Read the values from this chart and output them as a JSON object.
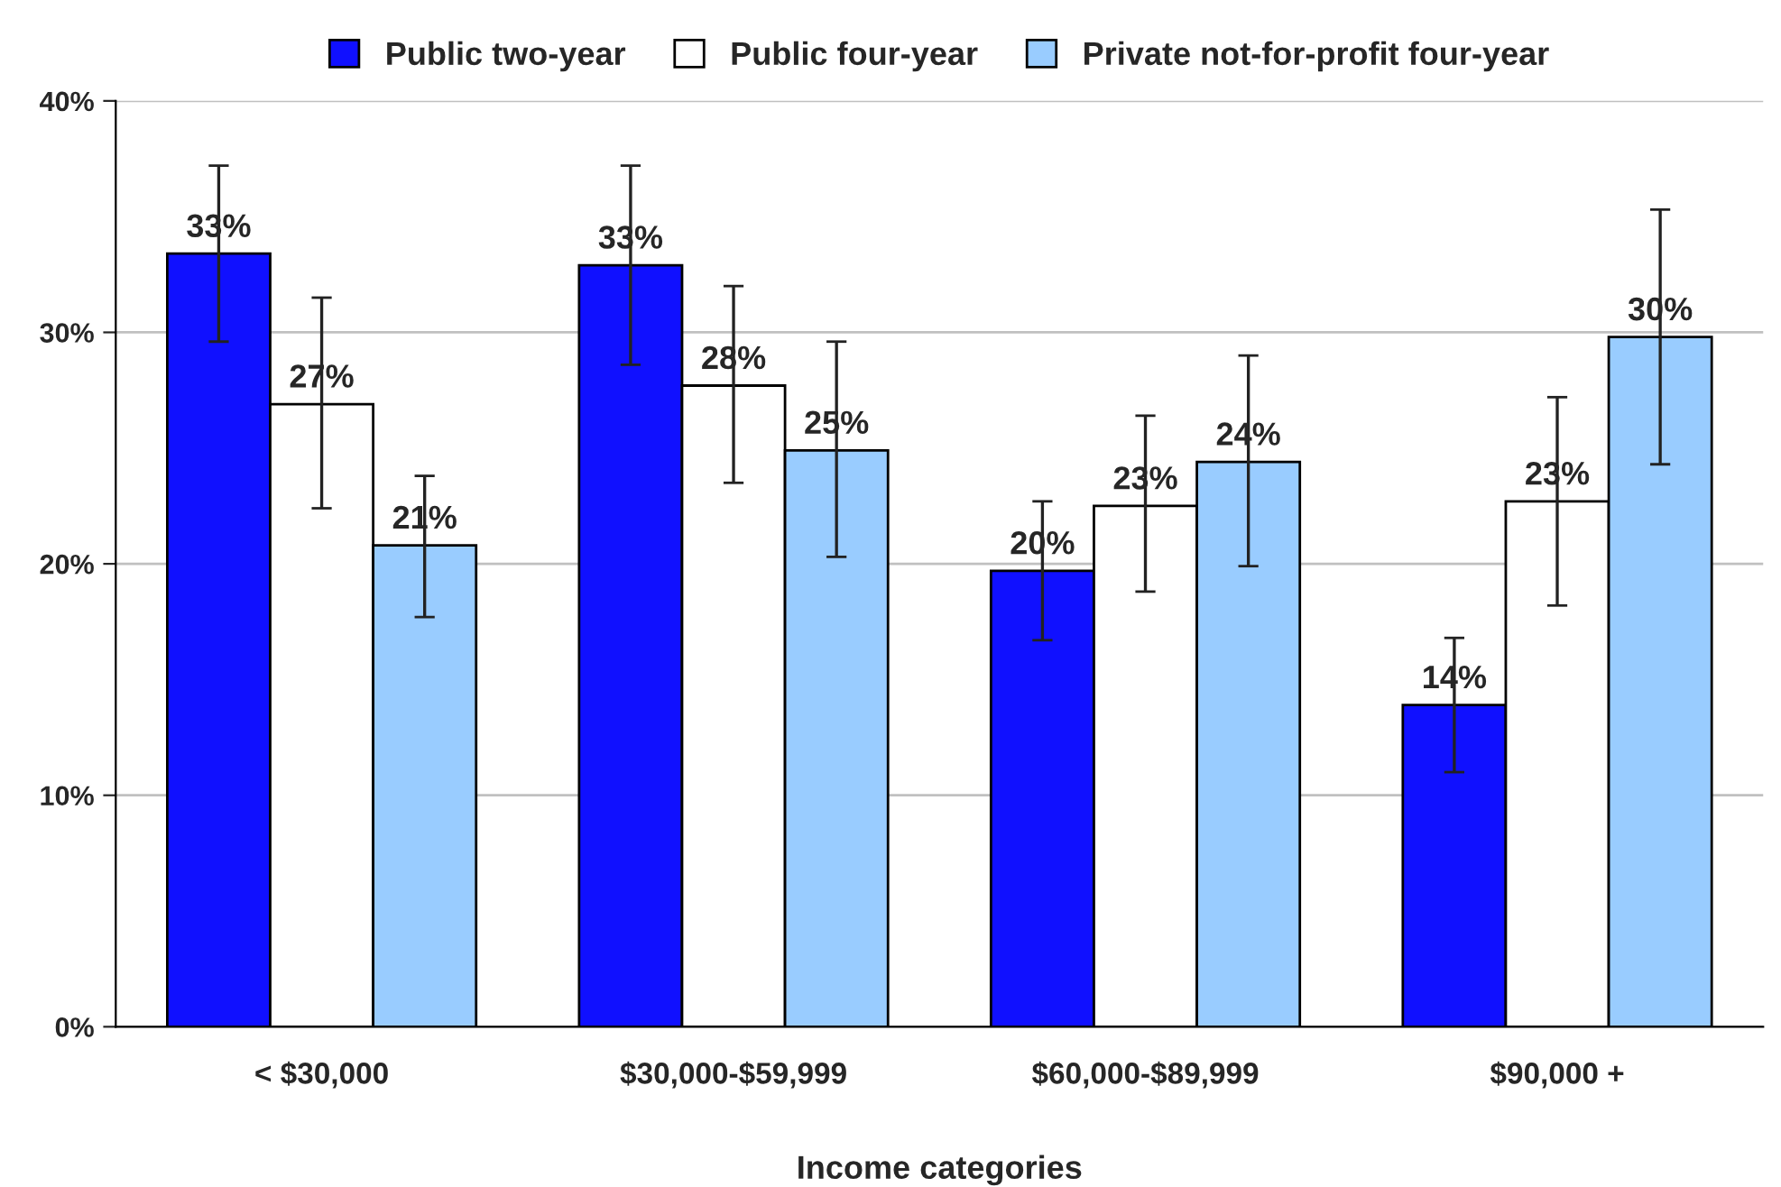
{
  "chart_data": {
    "type": "bar",
    "xlabel": "Income categories",
    "categories": [
      "< $30,000",
      "$30,000-$59,999",
      "$60,000-$89,999",
      "$90,000 +"
    ],
    "series": [
      {
        "name": "Public two-year",
        "color": "#1010ff",
        "values": [
          33.4,
          32.9,
          19.7,
          13.9
        ],
        "errors": [
          [
            29.6,
            37.2
          ],
          [
            28.6,
            37.2
          ],
          [
            16.7,
            22.7
          ],
          [
            11.0,
            16.8
          ]
        ],
        "value_labels": [
          "33%",
          "33%",
          "20%",
          "14%"
        ]
      },
      {
        "name": "Public four-year",
        "color": "#ffffff",
        "values": [
          26.9,
          27.7,
          22.5,
          22.7
        ],
        "errors": [
          [
            22.4,
            31.5
          ],
          [
            23.5,
            32.0
          ],
          [
            18.8,
            26.4
          ],
          [
            18.2,
            27.2
          ]
        ],
        "value_labels": [
          "27%",
          "28%",
          "23%",
          "23%"
        ]
      },
      {
        "name": "Private not-for-profit four-year",
        "color": "#99ccff",
        "values": [
          20.8,
          24.9,
          24.4,
          29.8
        ],
        "errors": [
          [
            17.7,
            23.8
          ],
          [
            20.3,
            29.6
          ],
          [
            19.9,
            29.0
          ],
          [
            24.3,
            35.3
          ]
        ],
        "value_labels": [
          "21%",
          "25%",
          "24%",
          "30%"
        ]
      }
    ],
    "ylim": [
      0,
      40
    ],
    "yticks": [
      {
        "value": 0,
        "label": "0%"
      },
      {
        "value": 10,
        "label": "10%"
      },
      {
        "value": 20,
        "label": "20%"
      },
      {
        "value": 30,
        "label": "30%"
      },
      {
        "value": 40,
        "label": "40%"
      }
    ],
    "grid": "y",
    "legend": "top"
  }
}
